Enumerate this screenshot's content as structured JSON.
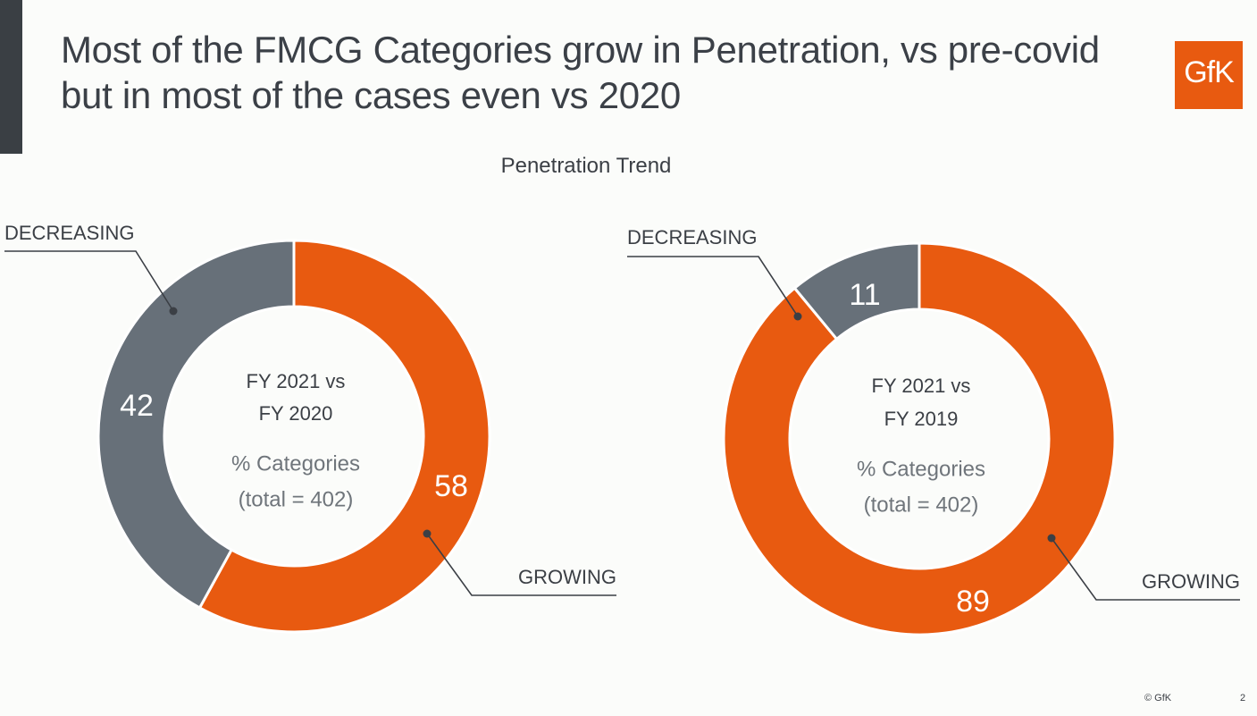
{
  "header": {
    "title": "Most of the FMCG Categories grow in Penetration, vs pre-covid but in most of the cases even vs 2020",
    "logo_text": "GfK",
    "logo_icon": "gfk-logo-icon"
  },
  "colors": {
    "growing": "#e85a10",
    "decreasing": "#677079",
    "text": "#3b3f45",
    "background": "#fbfcfa",
    "accent_bar": "#3a3f44"
  },
  "chart_data": [
    {
      "type": "pie",
      "variant": "donut",
      "title": "Penetration Trend",
      "center_title": [
        "FY 2021 vs",
        "FY 2020"
      ],
      "center_subtitle": [
        "% Categories",
        "(total = 402)"
      ],
      "unit": "% of categories",
      "slices": [
        {
          "label": "GROWING",
          "value": 58,
          "color": "#e85a10"
        },
        {
          "label": "DECREASING",
          "value": 42,
          "color": "#677079"
        }
      ],
      "start_angle": "12 o'clock",
      "direction": "clockwise"
    },
    {
      "type": "pie",
      "variant": "donut",
      "title": "Penetration Trend",
      "center_title": [
        "FY 2021 vs",
        "FY 2019"
      ],
      "center_subtitle": [
        "% Categories",
        "(total = 402)"
      ],
      "unit": "% of categories",
      "slices": [
        {
          "label": "GROWING",
          "value": 89,
          "color": "#e85a10"
        },
        {
          "label": "DECREASING",
          "value": 11,
          "color": "#677079"
        }
      ],
      "start_angle": "12 o'clock",
      "direction": "clockwise"
    }
  ],
  "footer": {
    "copyright": "© GfK",
    "page_number": "2"
  }
}
